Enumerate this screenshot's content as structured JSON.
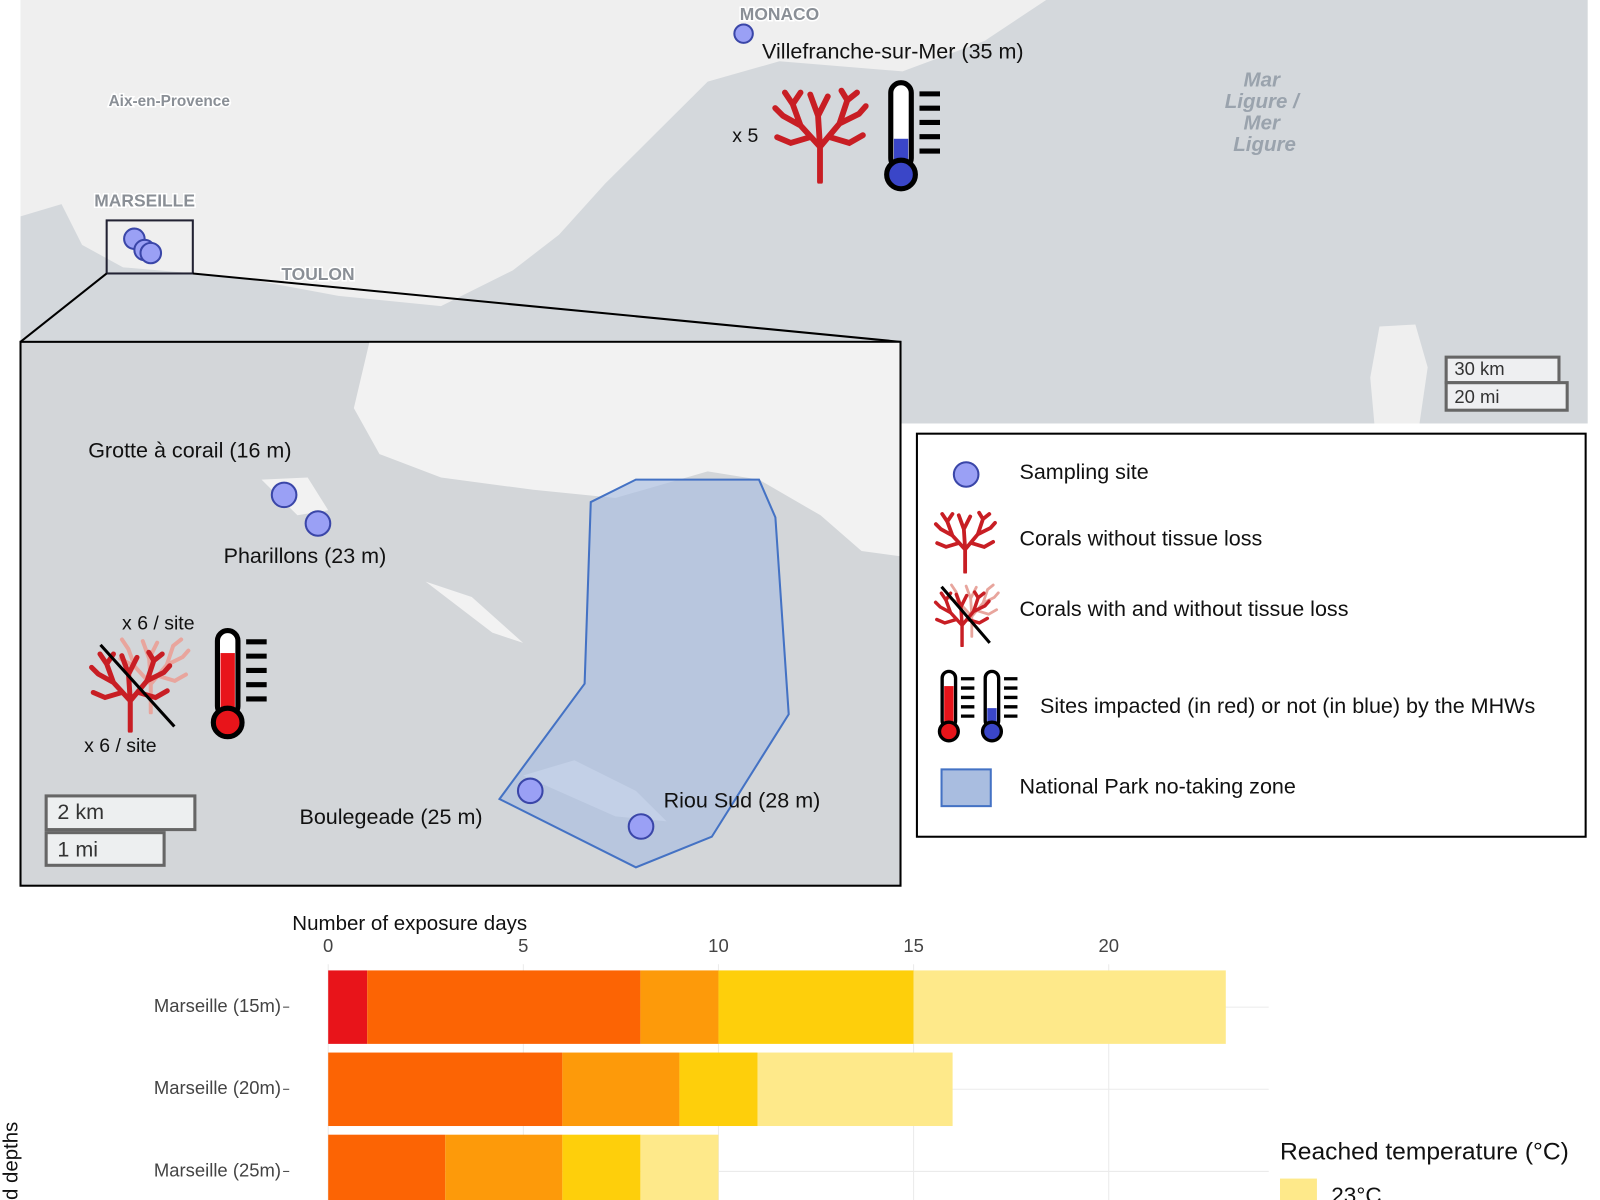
{
  "map": {
    "monaco": "MONACO",
    "aix": "Aix-en-Provence",
    "marseille": "MARSEILLE",
    "toulon": "TOULON",
    "sea_label": [
      "Mar",
      "Ligure /",
      "Mer",
      "Ligure"
    ],
    "site": "Villefranche-sur-Mer (35 m)",
    "count": "x 5",
    "scale_km": "30 km",
    "scale_mi": "20 mi"
  },
  "inset": {
    "sites": [
      "Grotte à corail (16 m)",
      "Pharillons (23 m)",
      "Boulegeade (25 m)",
      "Riou Sud (28 m)"
    ],
    "count_top": "x 6 / site",
    "count_bottom": "x 6 / site",
    "scale_km": "2 km",
    "scale_mi": "1 mi"
  },
  "legend": {
    "items": [
      "Sampling site",
      "Corals without tissue loss",
      "Corals with and without tissue loss",
      "Sites impacted (in red) or not (in blue) by the MHWs",
      "National Park no-taking zone"
    ]
  },
  "chart_data": {
    "type": "bar",
    "orientation": "horizontal",
    "stacked": true,
    "x_label": "Number of exposure days",
    "y_label": "d depths",
    "legend_title": "Reached temperature (°C)",
    "categories": [
      "Marseille (15m)",
      "Marseille (20m)",
      "Marseille (25m)"
    ],
    "series": [
      {
        "color": "#e8141a",
        "values": [
          1,
          0,
          0
        ]
      },
      {
        "color": "#fc6404",
        "values": [
          7,
          6,
          3
        ]
      },
      {
        "color": "#fd9a0a",
        "values": [
          2,
          3,
          3
        ]
      },
      {
        "color": "#fecf0b",
        "values": [
          5,
          2,
          2
        ]
      },
      {
        "name": "23°C",
        "color": "#fee98a",
        "values": [
          8,
          5,
          2
        ]
      }
    ],
    "xlim": [
      0,
      24.1
    ],
    "xticks": [
      0,
      5,
      10,
      15,
      20
    ],
    "grid": true
  }
}
